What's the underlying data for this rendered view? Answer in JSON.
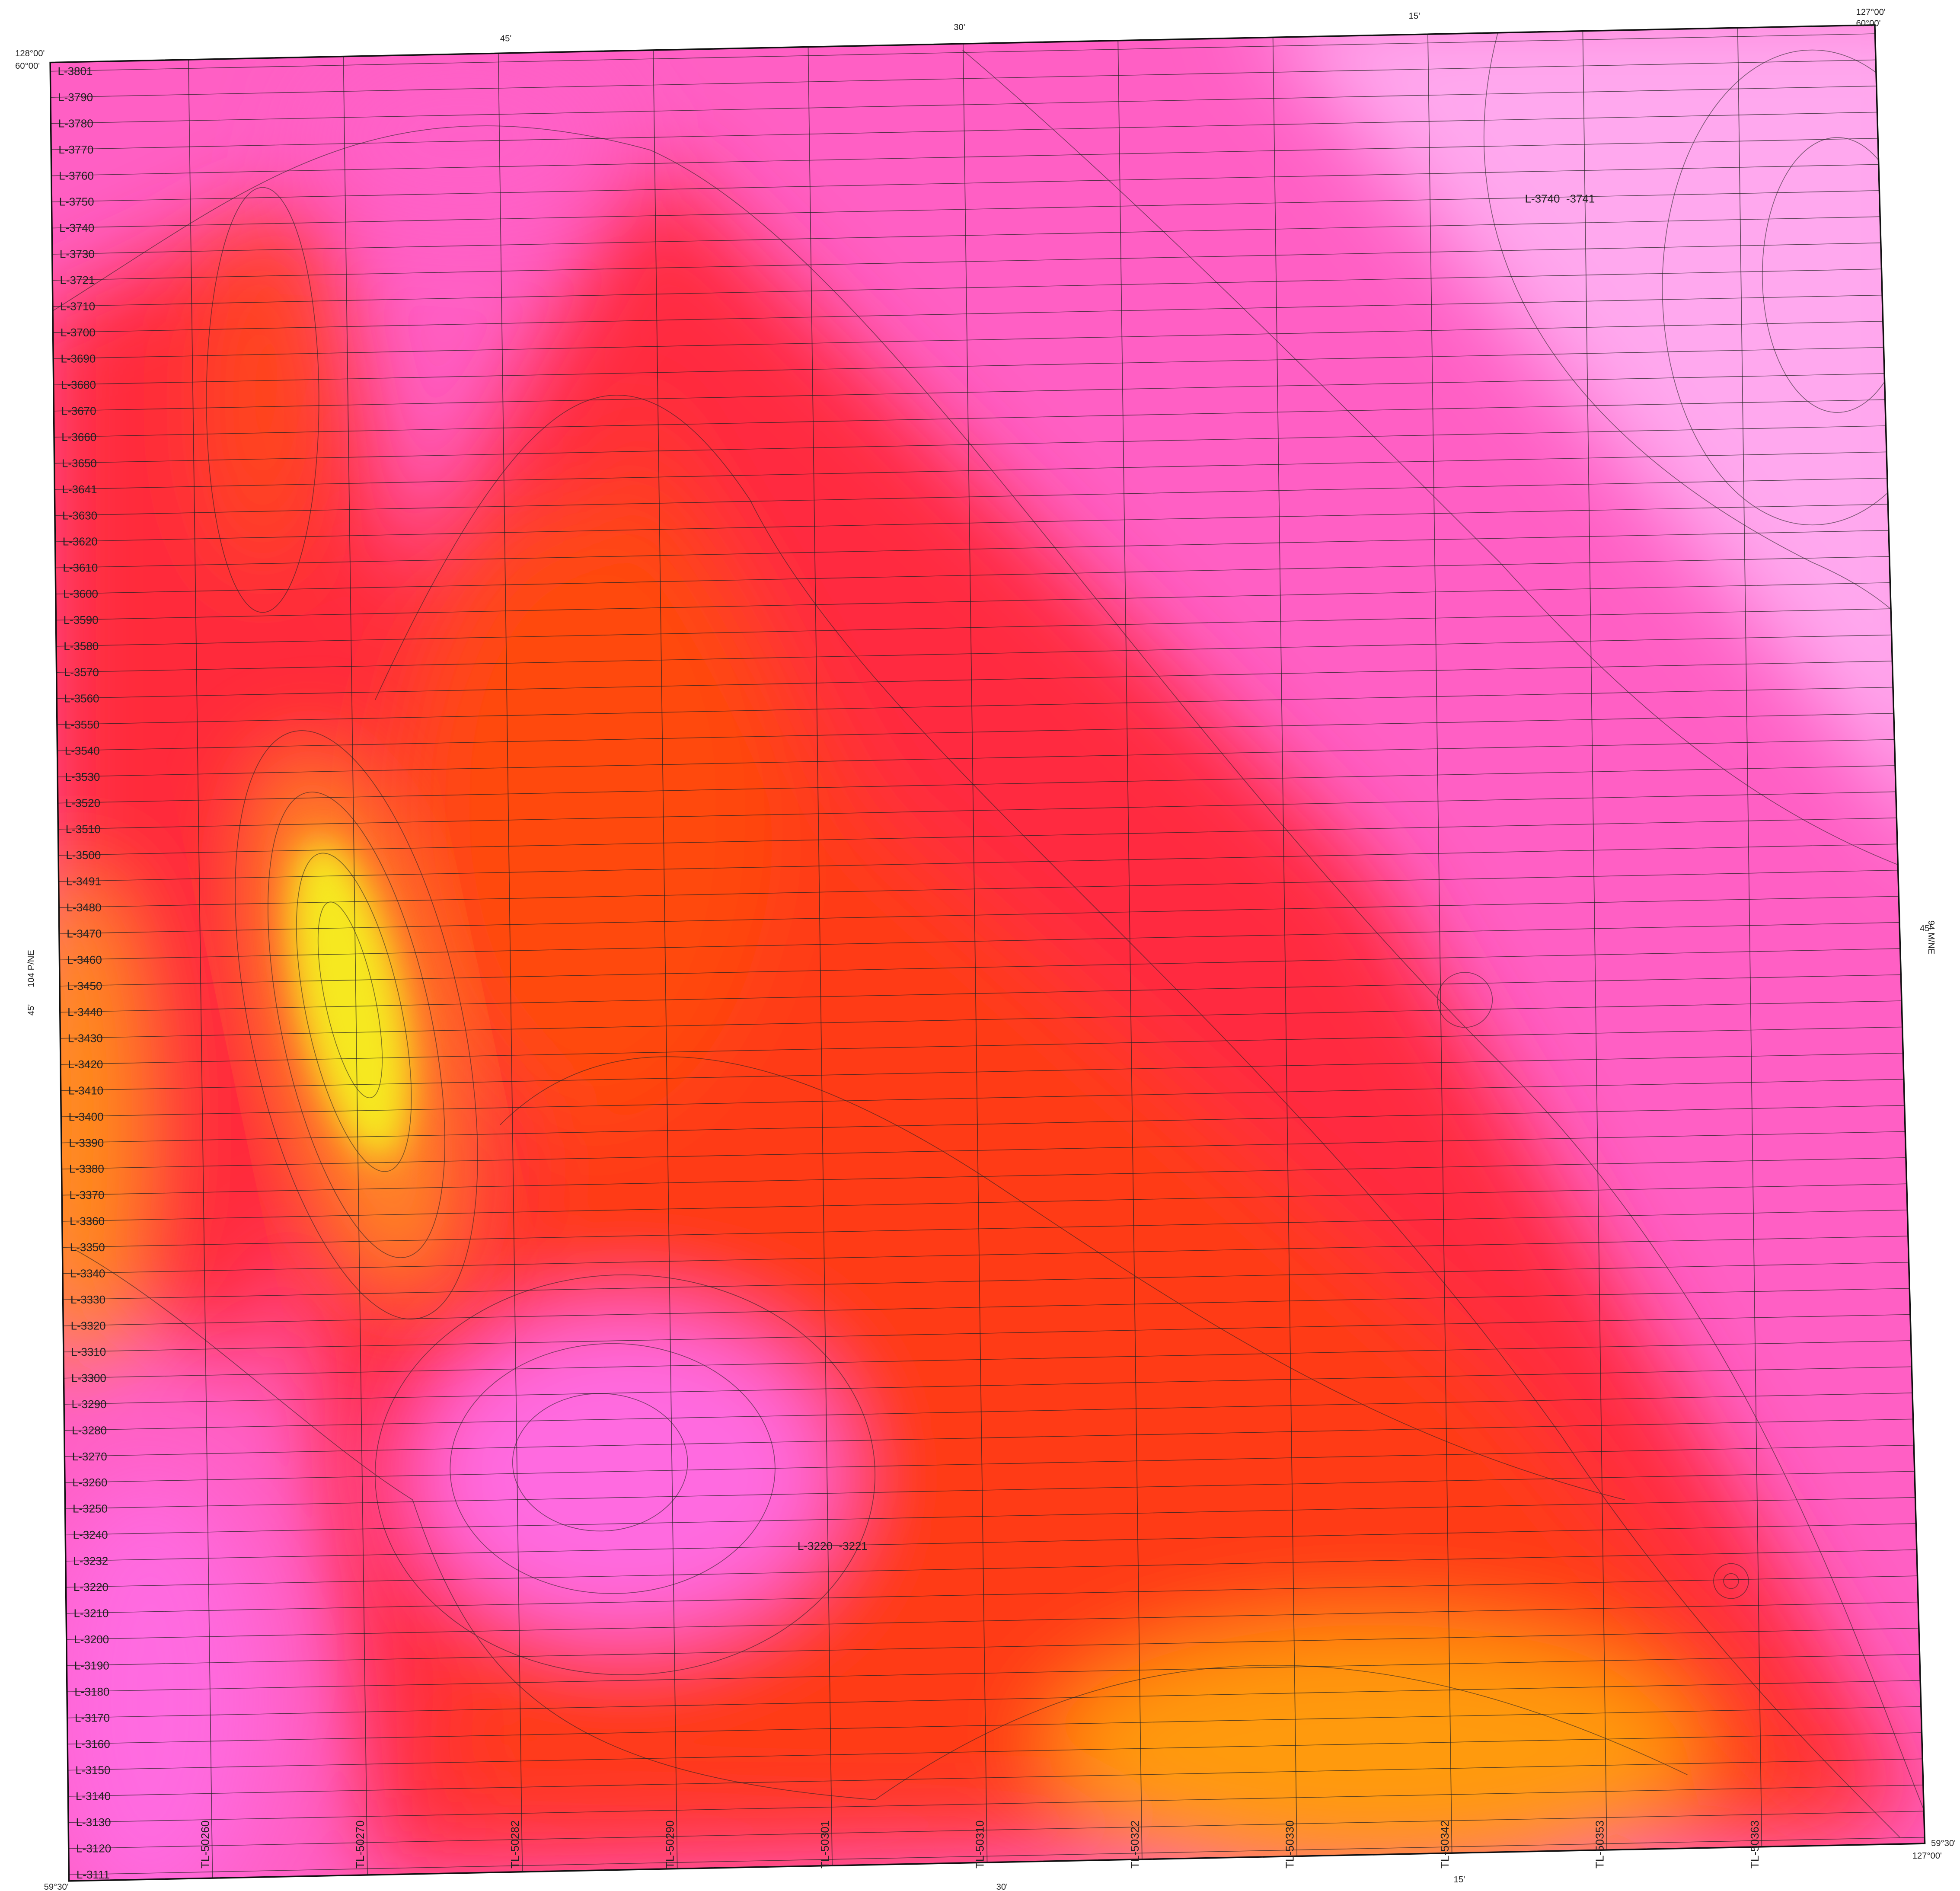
{
  "map": {
    "corners": {
      "top_left_lon": "128°00'",
      "top_left_lat": "60°00'",
      "top_right_lon": "127°00'",
      "top_right_lat": "60°00'",
      "bottom_left_lat": "59°30'",
      "bottom_right_lat": "59°30'",
      "bottom_right_lon": "127°00'"
    },
    "top_ticks": [
      "45'",
      "30'",
      "15'"
    ],
    "bottom_ticks": [
      "30'",
      "15'"
    ],
    "left_sheet": "104 P/NE",
    "left_tick": "45'",
    "right_sheet": "94 M/NE",
    "right_tick": "45'",
    "flight_lines": [
      "L-3801",
      "L-3790",
      "L-3780",
      "L-3770",
      "L-3760",
      "L-3750",
      "L-3740",
      "L-3730",
      "L-3721",
      "L-3710",
      "L-3700",
      "L-3690",
      "L-3680",
      "L-3670",
      "L-3660",
      "L-3650",
      "L-3641",
      "L-3630",
      "L-3620",
      "L-3610",
      "L-3600",
      "L-3590",
      "L-3580",
      "L-3570",
      "L-3560",
      "L-3550",
      "L-3540",
      "L-3530",
      "L-3520",
      "L-3510",
      "L-3500",
      "L-3491",
      "L-3480",
      "L-3470",
      "L-3460",
      "L-3450",
      "L-3440",
      "L-3430",
      "L-3420",
      "L-3410",
      "L-3400",
      "L-3390",
      "L-3380",
      "L-3370",
      "L-3360",
      "L-3350",
      "L-3340",
      "L-3330",
      "L-3320",
      "L-3310",
      "L-3300",
      "L-3290",
      "L-3280",
      "L-3270",
      "L-3260",
      "L-3250",
      "L-3240",
      "L-3232",
      "L-3220",
      "L-3210",
      "L-3200",
      "L-3190",
      "L-3180",
      "L-3170",
      "L-3160",
      "L-3150",
      "L-3140",
      "L-3130",
      "L-3120",
      "L-3111"
    ],
    "tie_lines": [
      "TL-50260",
      "TL-50270",
      "TL-50282",
      "TL-50290",
      "TL-50301",
      "TL-50310",
      "TL-50322",
      "TL-50330",
      "TL-50342",
      "TL-50353",
      "TL-50363"
    ],
    "annotations": [
      "L-3740  -3741",
      "L-3220  -3221"
    ]
  }
}
